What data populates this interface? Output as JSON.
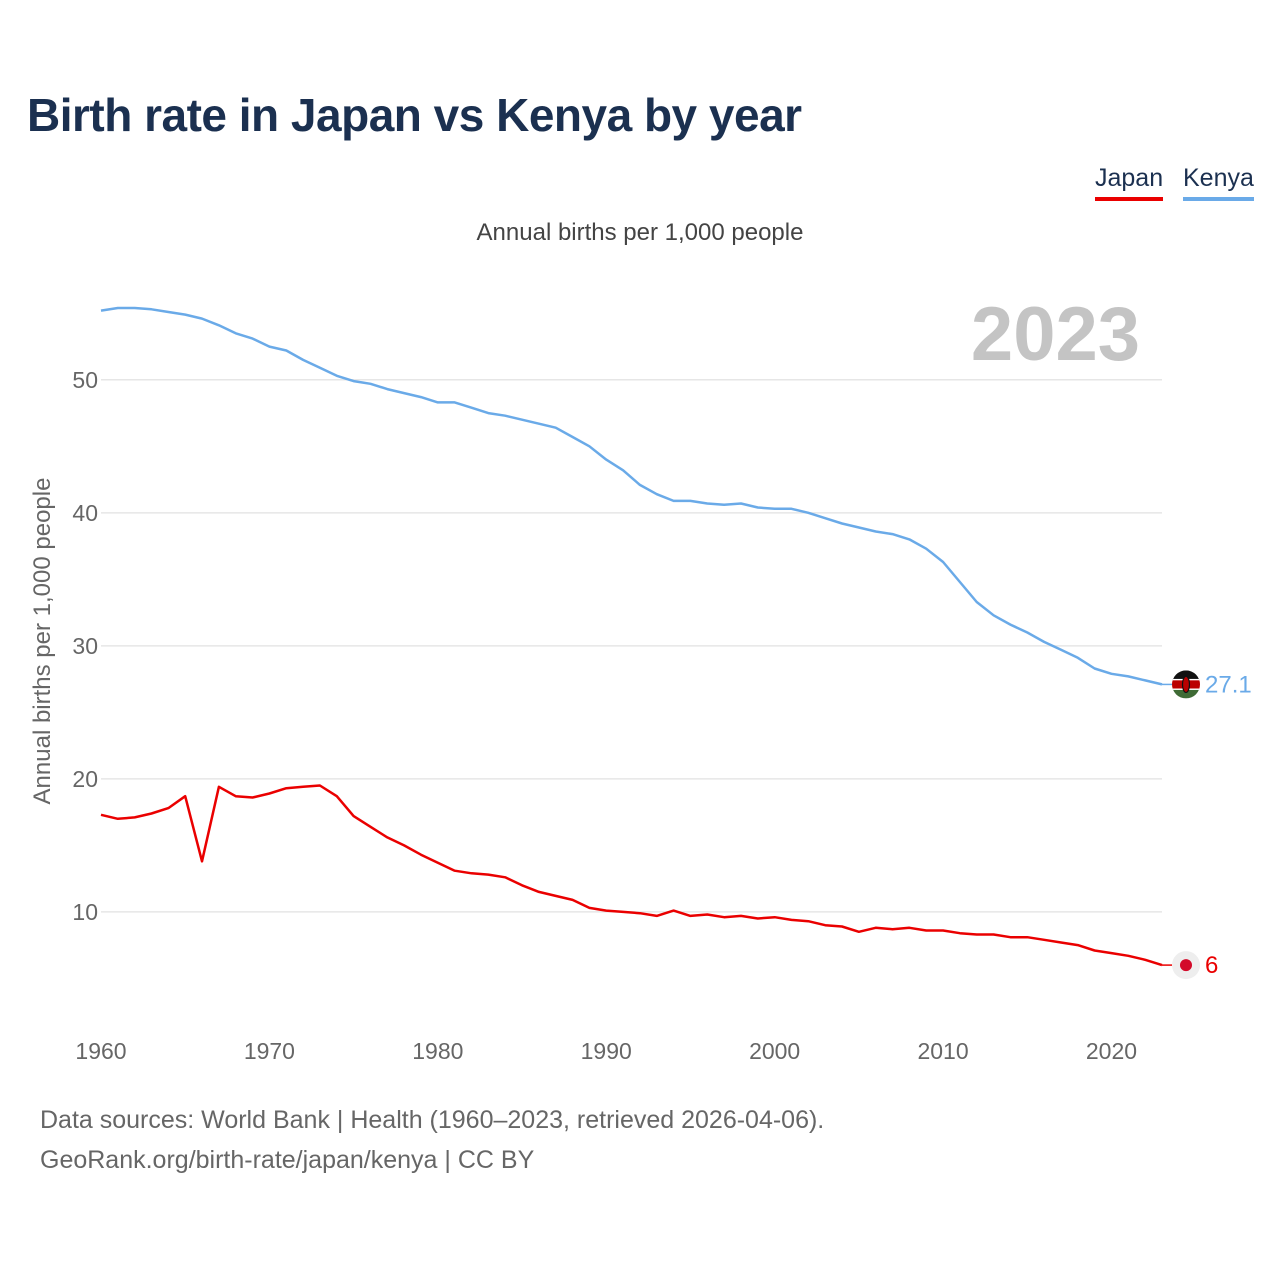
{
  "title": "Birth rate in Japan vs Kenya by year",
  "legend": {
    "japan": "Japan",
    "kenya": "Kenya"
  },
  "footer": {
    "source": "Data sources: World Bank | Health (1960–2023, retrieved 2026-04-06).",
    "credit": "GeoRank.org/birth-rate/japan/kenya | CC BY"
  },
  "colors": {
    "japan": "#ea0000",
    "kenya": "#6aaae8",
    "title": "#1b3050",
    "year": "#c4c4c4"
  },
  "chart_data": {
    "type": "line",
    "title": "Birth rate in Japan vs Kenya by year",
    "subtitle": "Annual births per 1,000 people",
    "ylabel": "Annual births per 1,000 people",
    "xlabel": "",
    "year_watermark": "2023",
    "xlim": [
      1960,
      2023
    ],
    "ylim": [
      3,
      56
    ],
    "xticks": [
      1960,
      1970,
      1980,
      1990,
      2000,
      2010,
      2020
    ],
    "yticks": [
      10,
      20,
      30,
      40,
      50
    ],
    "grid": true,
    "legend_position": "top-right",
    "x": [
      1960,
      1961,
      1962,
      1963,
      1964,
      1965,
      1966,
      1967,
      1968,
      1969,
      1970,
      1971,
      1972,
      1973,
      1974,
      1975,
      1976,
      1977,
      1978,
      1979,
      1980,
      1981,
      1982,
      1983,
      1984,
      1985,
      1986,
      1987,
      1988,
      1989,
      1990,
      1991,
      1992,
      1993,
      1994,
      1995,
      1996,
      1997,
      1998,
      1999,
      2000,
      2001,
      2002,
      2003,
      2004,
      2005,
      2006,
      2007,
      2008,
      2009,
      2010,
      2011,
      2012,
      2013,
      2014,
      2015,
      2016,
      2017,
      2018,
      2019,
      2020,
      2021,
      2022,
      2023
    ],
    "series": [
      {
        "name": "Japan",
        "end_label": "6",
        "values": [
          17.3,
          17.0,
          17.1,
          17.4,
          17.8,
          18.7,
          13.8,
          19.4,
          18.7,
          18.6,
          18.9,
          19.3,
          19.4,
          19.5,
          18.7,
          17.2,
          16.4,
          15.6,
          15.0,
          14.3,
          13.7,
          13.1,
          12.9,
          12.8,
          12.6,
          12.0,
          11.5,
          11.2,
          10.9,
          10.3,
          10.1,
          10.0,
          9.9,
          9.7,
          10.1,
          9.7,
          9.8,
          9.6,
          9.7,
          9.5,
          9.6,
          9.4,
          9.3,
          9.0,
          8.9,
          8.5,
          8.8,
          8.7,
          8.8,
          8.6,
          8.6,
          8.4,
          8.3,
          8.3,
          8.1,
          8.1,
          7.9,
          7.7,
          7.5,
          7.1,
          6.9,
          6.7,
          6.4,
          6.0
        ]
      },
      {
        "name": "Kenya",
        "end_label": "27.1",
        "values": [
          55.2,
          55.4,
          55.4,
          55.3,
          55.1,
          54.9,
          54.6,
          54.1,
          53.5,
          53.1,
          52.5,
          52.2,
          51.5,
          50.9,
          50.3,
          49.9,
          49.7,
          49.3,
          49.0,
          48.7,
          48.3,
          48.3,
          47.9,
          47.5,
          47.3,
          47.0,
          46.7,
          46.4,
          45.7,
          45.0,
          44.0,
          43.2,
          42.1,
          41.4,
          40.9,
          40.9,
          40.7,
          40.6,
          40.7,
          40.4,
          40.3,
          40.3,
          40.0,
          39.6,
          39.2,
          38.9,
          38.6,
          38.4,
          38.0,
          37.3,
          36.3,
          34.8,
          33.3,
          32.3,
          31.6,
          31.0,
          30.3,
          29.7,
          29.1,
          28.3,
          27.9,
          27.7,
          27.4,
          27.1
        ]
      }
    ]
  }
}
